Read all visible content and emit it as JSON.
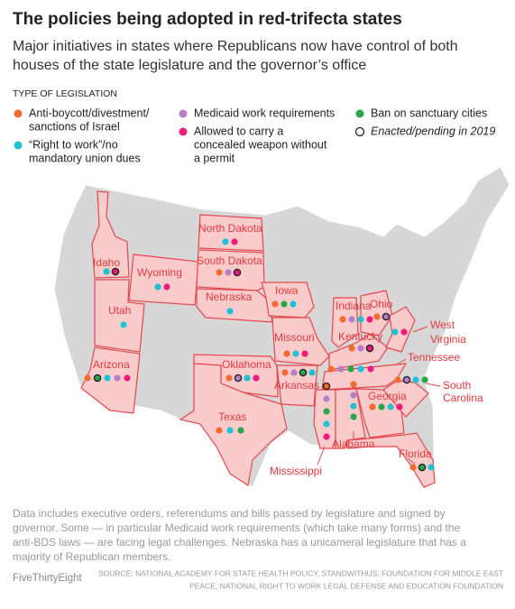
{
  "header": {
    "title": "The policies being adopted in red-trifecta states",
    "subtitle": [
      "Major initiatives in states where Republicans now have control of both",
      "houses of the state legislature and the governor’s office"
    ]
  },
  "legend": {
    "heading": "TYPE OF LEGISLATION",
    "items": [
      {
        "label": [
          "Anti-boycott/divestment/",
          "sanctions of Israel"
        ],
        "color": "#f26b2f"
      },
      {
        "label": [
          "“Right to work”/no",
          "mandatory union dues"
        ],
        "color": "#1fc1d3"
      },
      {
        "label": [
          "Medicaid work requirements"
        ],
        "color": "#b47ec9"
      },
      {
        "label": [
          "Allowed to carry a",
          "concealed weapon without",
          "a permit"
        ],
        "color": "#ee1b7b"
      },
      {
        "label": [
          "Ban on sanctuary cities"
        ],
        "color": "#2aa64a"
      }
    ],
    "enacted": "Enacted/pending in 2019"
  },
  "states": [
    {
      "name": "Idaho",
      "dots": [
        {
          "policy": 1,
          "enacted": false
        },
        {
          "policy": 3,
          "enacted": true
        }
      ]
    },
    {
      "name": "Wyoming",
      "dots": [
        {
          "policy": 1,
          "enacted": false
        },
        {
          "policy": 3,
          "enacted": false
        }
      ]
    },
    {
      "name": "North Dakota",
      "dots": [
        {
          "policy": 1,
          "enacted": false
        },
        {
          "policy": 3,
          "enacted": false
        }
      ]
    },
    {
      "name": "South Dakota",
      "dots": [
        {
          "policy": 0,
          "enacted": false
        },
        {
          "policy": 2,
          "enacted": false
        },
        {
          "policy": 3,
          "enacted": true
        }
      ]
    },
    {
      "name": "Utah",
      "dots": [
        {
          "policy": 1,
          "enacted": false
        }
      ]
    },
    {
      "name": "Nebraska",
      "dots": [
        {
          "policy": 1,
          "enacted": false
        }
      ]
    },
    {
      "name": "Iowa",
      "dots": [
        {
          "policy": 0,
          "enacted": false
        },
        {
          "policy": 4,
          "enacted": false
        },
        {
          "policy": 1,
          "enacted": false
        }
      ]
    },
    {
      "name": "Arizona",
      "dots": [
        {
          "policy": 0,
          "enacted": false
        },
        {
          "policy": 4,
          "enacted": true
        },
        {
          "policy": 1,
          "enacted": false
        },
        {
          "policy": 2,
          "enacted": false
        },
        {
          "policy": 3,
          "enacted": false
        }
      ]
    },
    {
      "name": "Oklahoma",
      "dots": [
        {
          "policy": 0,
          "enacted": false
        },
        {
          "policy": 2,
          "enacted": true
        },
        {
          "policy": 1,
          "enacted": false
        },
        {
          "policy": 3,
          "enacted": false
        }
      ]
    },
    {
      "name": "Texas",
      "dots": [
        {
          "policy": 0,
          "enacted": false
        },
        {
          "policy": 1,
          "enacted": false
        },
        {
          "policy": 4,
          "enacted": false
        }
      ]
    },
    {
      "name": "Missouri",
      "dots": [
        {
          "policy": 0,
          "enacted": false
        },
        {
          "policy": 1,
          "enacted": false
        },
        {
          "policy": 3,
          "enacted": false
        }
      ]
    },
    {
      "name": "Arkansas",
      "dots": [
        {
          "policy": 0,
          "enacted": false
        },
        {
          "policy": 2,
          "enacted": false
        },
        {
          "policy": 4,
          "enacted": true
        },
        {
          "policy": 1,
          "enacted": false
        }
      ]
    },
    {
      "name": "Indiana",
      "dots": [
        {
          "policy": 0,
          "enacted": false
        },
        {
          "policy": 2,
          "enacted": false
        },
        {
          "policy": 1,
          "enacted": false
        },
        {
          "policy": 3,
          "enacted": false
        }
      ]
    },
    {
      "name": "Ohio",
      "dots": [
        {
          "policy": 0,
          "enacted": false
        },
        {
          "policy": 2,
          "enacted": true
        }
      ]
    },
    {
      "name": "Kentucky",
      "dots": [
        {
          "policy": 0,
          "enacted": false
        },
        {
          "policy": 2,
          "enacted": false
        },
        {
          "policy": 3,
          "enacted": true
        }
      ]
    },
    {
      "name": "Tennessee",
      "dots": [
        {
          "policy": 0,
          "enacted": false
        },
        {
          "policy": 2,
          "enacted": false
        },
        {
          "policy": 4,
          "enacted": false
        },
        {
          "policy": 1,
          "enacted": false
        },
        {
          "policy": 3,
          "enacted": false
        }
      ]
    },
    {
      "name": [
        "West",
        "Virginia"
      ],
      "dots": [
        {
          "policy": 1,
          "enacted": false
        },
        {
          "policy": 3,
          "enacted": false
        }
      ]
    },
    {
      "name": "Mississippi",
      "dots": [
        {
          "policy": 0,
          "enacted": true
        },
        {
          "policy": 2,
          "enacted": false
        },
        {
          "policy": 4,
          "enacted": false
        },
        {
          "policy": 1,
          "enacted": false
        },
        {
          "policy": 3,
          "enacted": false
        }
      ]
    },
    {
      "name": "Alabama",
      "dots": [
        {
          "policy": 0,
          "enacted": false
        },
        {
          "policy": 2,
          "enacted": false
        },
        {
          "policy": 1,
          "enacted": false
        },
        {
          "policy": 4,
          "enacted": false
        }
      ]
    },
    {
      "name": "Georgia",
      "dots": [
        {
          "policy": 0,
          "enacted": false
        },
        {
          "policy": 4,
          "enacted": false
        },
        {
          "policy": 1,
          "enacted": false
        },
        {
          "policy": 3,
          "enacted": false
        }
      ]
    },
    {
      "name": [
        "South",
        "Carolina"
      ],
      "dots": [
        {
          "policy": 0,
          "enacted": false
        },
        {
          "policy": 2,
          "enacted": true
        },
        {
          "policy": 1,
          "enacted": false
        },
        {
          "policy": 4,
          "enacted": false
        }
      ]
    },
    {
      "name": "Florida",
      "dots": [
        {
          "policy": 0,
          "enacted": false
        },
        {
          "policy": 4,
          "enacted": true
        },
        {
          "policy": 1,
          "enacted": false
        }
      ]
    }
  ],
  "note": [
    "Data includes executive orders, referendums and bills passed by legislature and signed by",
    "governor.  Some — in particular Medicaid work requirements (which take many forms) and the",
    "anti-BDS laws — are facing legal challenges. Nebraska has a unicameral legislature that has a",
    "majority of Republican members."
  ],
  "footer": {
    "brand": "FiveThirtyEight",
    "source": [
      "SOURCE: NATIONAL ACADEMY FOR STATE HEALTH POLICY, STANDWITHUS, FOUNDATION FOR MIDDLE EAST",
      "PEACE, NATIONAL RIGHT TO WORK LEGAL DEFENSE AND EDUCATION FOUNDATION"
    ]
  }
}
